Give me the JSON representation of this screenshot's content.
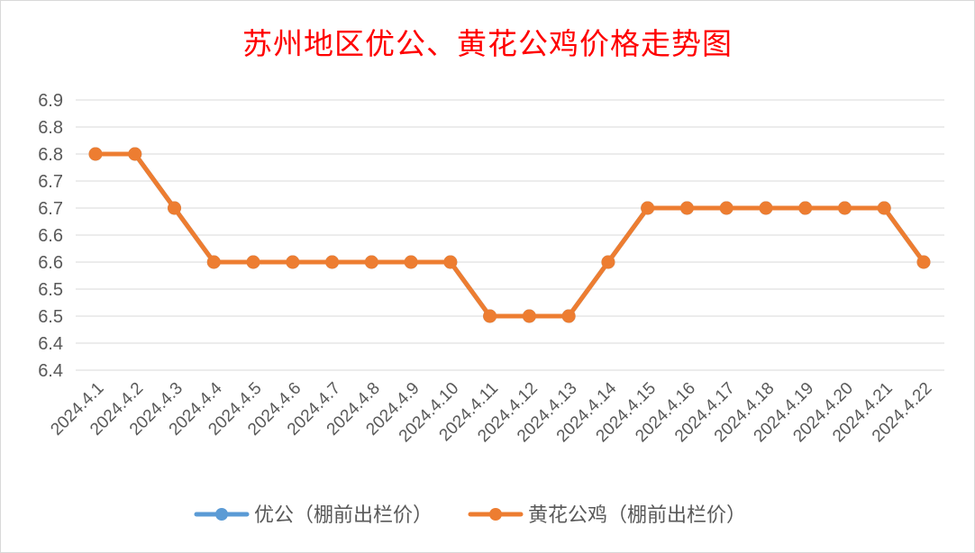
{
  "chart_data": {
    "type": "line",
    "title": "苏州地区优公、黄花公鸡价格走势图",
    "categories": [
      "2024.4.1",
      "2024.4.2",
      "2024.4.3",
      "2024.4.4",
      "2024.4.5",
      "2024.4.6",
      "2024.4.7",
      "2024.4.8",
      "2024.4.9",
      "2024.4.10",
      "2024.4.11",
      "2024.4.12",
      "2024.4.13",
      "2024.4.14",
      "2024.4.15",
      "2024.4.16",
      "2024.4.17",
      "2024.4.18",
      "2024.4.19",
      "2024.4.20",
      "2024.4.21",
      "2024.4.22"
    ],
    "y_tick_labels": [
      "6.4",
      "6.4",
      "6.5",
      "6.5",
      "6.6",
      "6.6",
      "6.7",
      "6.7",
      "6.8",
      "6.8",
      "6.9"
    ],
    "ylim": [
      6.4,
      6.9
    ],
    "grid": true,
    "legend": "bottom",
    "series": [
      {
        "name": "优公（棚前出栏价）",
        "color": "#5b9bd5",
        "values": [
          6.8,
          6.8,
          6.7,
          6.6,
          6.6,
          6.6,
          6.6,
          6.6,
          6.6,
          6.6,
          6.5,
          6.5,
          6.5,
          6.6,
          6.7,
          6.7,
          6.7,
          6.7,
          6.7,
          6.7,
          6.7,
          6.6
        ]
      },
      {
        "name": "黄花公鸡（棚前出栏价）",
        "color": "#ed7d31",
        "values": [
          6.8,
          6.8,
          6.7,
          6.6,
          6.6,
          6.6,
          6.6,
          6.6,
          6.6,
          6.6,
          6.5,
          6.5,
          6.5,
          6.6,
          6.7,
          6.7,
          6.7,
          6.7,
          6.7,
          6.7,
          6.7,
          6.6
        ]
      }
    ]
  }
}
